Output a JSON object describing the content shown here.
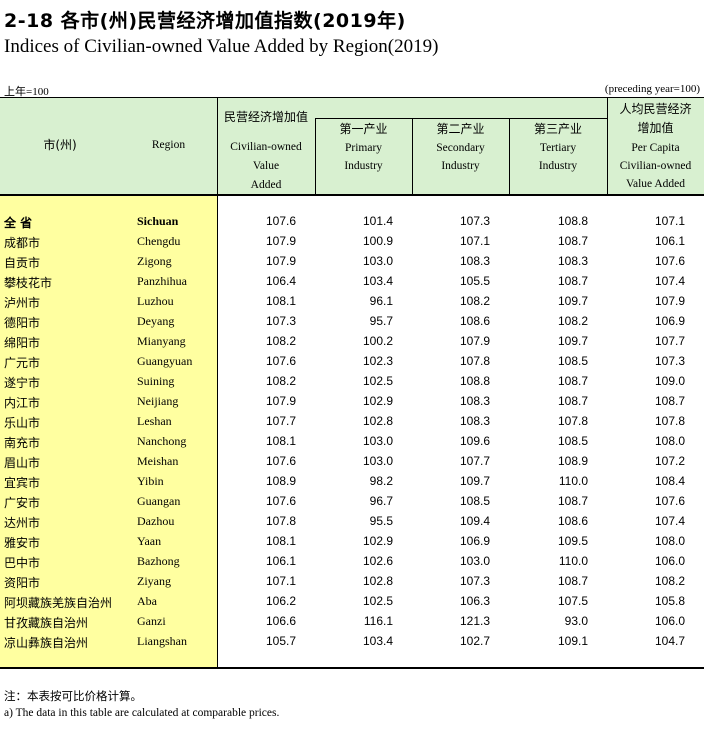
{
  "title": {
    "cn": "2-18  各市(州)民营经济增加值指数(2019年)",
    "en": "Indices of Civilian-owned Value Added by Region(2019)"
  },
  "unit": {
    "left": "上年=100",
    "right": "(preceding year=100)"
  },
  "header": {
    "city_cn": "市(州)",
    "region_en": "Region",
    "cva_cn": "民营经济增加值",
    "cva_en_1": "Civilian-owned",
    "cva_en_2": "Value",
    "cva_en_3": "Added",
    "primary_cn": "第一产业",
    "primary_en_1": "Primary",
    "primary_en_2": "Industry",
    "secondary_cn": "第二产业",
    "secondary_en_1": "Secondary",
    "secondary_en_2": "Industry",
    "tertiary_cn": "第三产业",
    "tertiary_en_1": "Tertiary",
    "tertiary_en_2": "Industry",
    "percap_cn_1": "人均民营经济",
    "percap_cn_2": "增加值",
    "percap_en_1": "Per Capita",
    "percap_en_2": "Civilian-owned",
    "percap_en_3": "Value Added"
  },
  "rows": [
    {
      "cn": "全  省",
      "en": "Sichuan",
      "v": [
        "107.6",
        "101.4",
        "107.3",
        "108.8",
        "107.1"
      ]
    },
    {
      "cn": "成都市",
      "en": "Chengdu",
      "v": [
        "107.9",
        "100.9",
        "107.1",
        "108.7",
        "106.1"
      ]
    },
    {
      "cn": "自贡市",
      "en": "Zigong",
      "v": [
        "107.9",
        "103.0",
        "108.3",
        "108.3",
        "107.6"
      ]
    },
    {
      "cn": "攀枝花市",
      "en": "Panzhihua",
      "v": [
        "106.4",
        "103.4",
        "105.5",
        "108.7",
        "107.4"
      ]
    },
    {
      "cn": "泸州市",
      "en": "Luzhou",
      "v": [
        "108.1",
        "96.1",
        "108.2",
        "109.7",
        "107.9"
      ]
    },
    {
      "cn": "德阳市",
      "en": "Deyang",
      "v": [
        "107.3",
        "95.7",
        "108.6",
        "108.2",
        "106.9"
      ]
    },
    {
      "cn": "绵阳市",
      "en": "Mianyang",
      "v": [
        "108.2",
        "100.2",
        "107.9",
        "109.7",
        "107.7"
      ]
    },
    {
      "cn": "广元市",
      "en": "Guangyuan",
      "v": [
        "107.6",
        "102.3",
        "107.8",
        "108.5",
        "107.3"
      ]
    },
    {
      "cn": "遂宁市",
      "en": "Suining",
      "v": [
        "108.2",
        "102.5",
        "108.8",
        "108.7",
        "109.0"
      ]
    },
    {
      "cn": "内江市",
      "en": "Neijiang",
      "v": [
        "107.9",
        "102.9",
        "108.3",
        "108.7",
        "108.7"
      ]
    },
    {
      "cn": "乐山市",
      "en": "Leshan",
      "v": [
        "107.7",
        "102.8",
        "108.3",
        "107.8",
        "107.8"
      ]
    },
    {
      "cn": "南充市",
      "en": "Nanchong",
      "v": [
        "108.1",
        "103.0",
        "109.6",
        "108.5",
        "108.0"
      ]
    },
    {
      "cn": "眉山市",
      "en": "Meishan",
      "v": [
        "107.6",
        "103.0",
        "107.7",
        "108.9",
        "107.2"
      ]
    },
    {
      "cn": "宜宾市",
      "en": "Yibin",
      "v": [
        "108.9",
        "98.2",
        "109.7",
        "110.0",
        "108.4"
      ]
    },
    {
      "cn": "广安市",
      "en": "Guangan",
      "v": [
        "107.6",
        "96.7",
        "108.5",
        "108.7",
        "107.6"
      ]
    },
    {
      "cn": "达州市",
      "en": "Dazhou",
      "v": [
        "107.8",
        "95.5",
        "109.4",
        "108.6",
        "107.4"
      ]
    },
    {
      "cn": "雅安市",
      "en": "Yaan",
      "v": [
        "108.1",
        "102.9",
        "106.9",
        "109.5",
        "108.0"
      ]
    },
    {
      "cn": "巴中市",
      "en": "Bazhong",
      "v": [
        "106.1",
        "102.6",
        "103.0",
        "110.0",
        "106.0"
      ]
    },
    {
      "cn": "资阳市",
      "en": "Ziyang",
      "v": [
        "107.1",
        "102.8",
        "107.3",
        "108.7",
        "108.2"
      ]
    },
    {
      "cn": "阿坝藏族羌族自治州",
      "en": "Aba",
      "v": [
        "106.2",
        "102.5",
        "106.3",
        "107.5",
        "105.8"
      ]
    },
    {
      "cn": "甘孜藏族自治州",
      "en": "Ganzi",
      "v": [
        "106.6",
        "116.1",
        "121.3",
        "93.0",
        "106.0"
      ]
    },
    {
      "cn": "凉山彝族自治州",
      "en": "Liangshan",
      "v": [
        "105.7",
        "103.4",
        "102.7",
        "109.1",
        "104.7"
      ]
    }
  ],
  "notes": {
    "cn": "注：本表按可比价格计算。",
    "en": "a) The data in this table are calculated at comparable prices."
  }
}
